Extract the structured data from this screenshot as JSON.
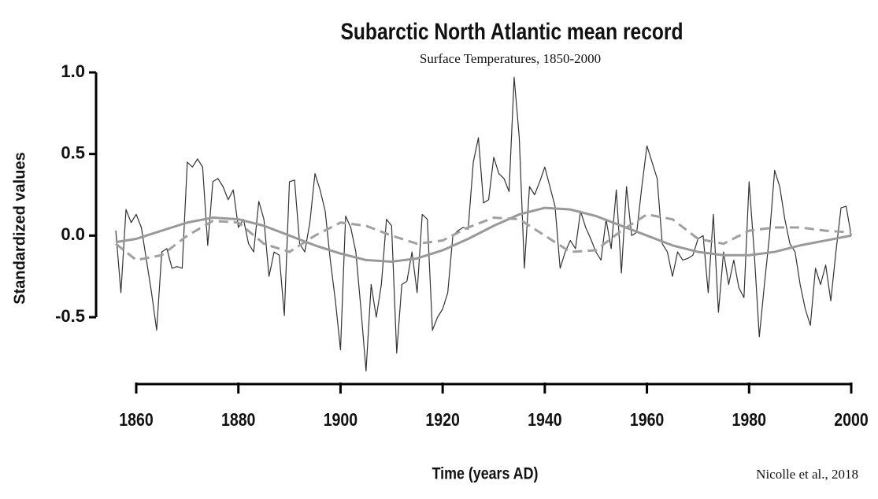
{
  "chart_data": {
    "type": "line",
    "title": "Subarctic North Atlantic mean record",
    "subtitle": "Surface Temperatures, 1850-2000",
    "ylabel": "Standardized values",
    "xlabel": "Time  (years AD)",
    "annotation": "Nicolle et al., 2018",
    "xlim": [
      1860,
      2000
    ],
    "xticks": [
      1860,
      1880,
      1900,
      1920,
      1940,
      1960,
      1980,
      2000
    ],
    "ylim": [
      -0.5,
      1.0
    ],
    "yticks": [
      {
        "value": 1.0,
        "label": "1.0"
      },
      0.5,
      {
        "value": 0.0,
        "label": "0.0"
      },
      -0.5
    ],
    "series": [
      {
        "color": "#333333",
        "linestyle": "solid",
        "width": 1.2,
        "x": [
          1856,
          1857,
          1858,
          1859,
          1860,
          1861,
          1862,
          1863,
          1864,
          1865,
          1866,
          1867,
          1868,
          1869,
          1870,
          1871,
          1872,
          1873,
          1874,
          1875,
          1876,
          1877,
          1878,
          1879,
          1880,
          1881,
          1882,
          1883,
          1884,
          1885,
          1886,
          1887,
          1888,
          1889,
          1890,
          1891,
          1892,
          1893,
          1894,
          1895,
          1896,
          1897,
          1898,
          1899,
          1900,
          1901,
          1902,
          1903,
          1904,
          1905,
          1906,
          1907,
          1908,
          1909,
          1910,
          1911,
          1912,
          1913,
          1914,
          1915,
          1916,
          1917,
          1918,
          1919,
          1920,
          1921,
          1922,
          1923,
          1924,
          1925,
          1926,
          1927,
          1928,
          1929,
          1930,
          1931,
          1932,
          1933,
          1934,
          1935,
          1936,
          1937,
          1938,
          1939,
          1940,
          1941,
          1942,
          1943,
          1944,
          1945,
          1946,
          1947,
          1948,
          1949,
          1950,
          1951,
          1952,
          1953,
          1954,
          1955,
          1956,
          1957,
          1958,
          1959,
          1960,
          1961,
          1962,
          1963,
          1964,
          1965,
          1966,
          1967,
          1968,
          1969,
          1970,
          1971,
          1972,
          1973,
          1974,
          1975,
          1976,
          1977,
          1978,
          1979,
          1980,
          1981,
          1982,
          1983,
          1984,
          1985,
          1986,
          1987,
          1988,
          1989,
          1990,
          1991,
          1992,
          1993,
          1994,
          1995,
          1996,
          1997,
          1998,
          1999,
          2000
        ],
        "values": [
          0.03,
          -0.35,
          0.16,
          0.08,
          0.13,
          0.05,
          -0.15,
          -0.35,
          -0.58,
          -0.1,
          -0.08,
          -0.2,
          -0.19,
          -0.2,
          0.45,
          0.42,
          0.47,
          0.42,
          -0.06,
          0.33,
          0.35,
          0.3,
          0.22,
          0.28,
          0.05,
          0.1,
          -0.05,
          -0.1,
          0.21,
          0.1,
          -0.25,
          -0.1,
          -0.12,
          -0.49,
          0.33,
          0.34,
          -0.05,
          -0.1,
          0.08,
          0.38,
          0.28,
          0.15,
          -0.15,
          -0.4,
          -0.7,
          0.12,
          0.05,
          -0.1,
          -0.45,
          -0.83,
          -0.3,
          -0.5,
          -0.3,
          0.1,
          0.06,
          -0.72,
          -0.3,
          -0.28,
          -0.1,
          -0.35,
          0.13,
          0.1,
          -0.58,
          -0.5,
          -0.45,
          -0.35,
          0.0,
          0.03,
          0.05,
          0.04,
          0.45,
          0.6,
          0.2,
          0.22,
          0.48,
          0.38,
          0.35,
          0.27,
          0.97,
          0.6,
          -0.2,
          0.3,
          0.25,
          0.33,
          0.42,
          0.3,
          0.18,
          -0.2,
          -0.1,
          -0.03,
          -0.08,
          0.15,
          0.05,
          -0.02,
          -0.1,
          -0.15,
          0.1,
          -0.08,
          0.28,
          -0.23,
          0.3,
          0.0,
          0.02,
          0.3,
          0.55,
          0.45,
          0.35,
          -0.05,
          -0.1,
          -0.25,
          -0.1,
          -0.15,
          -0.14,
          -0.12,
          -0.02,
          0.0,
          -0.35,
          0.13,
          -0.47,
          -0.1,
          -0.3,
          -0.15,
          -0.32,
          -0.38,
          0.33,
          -0.1,
          -0.62,
          -0.3,
          0.0,
          0.4,
          0.3,
          0.1,
          -0.05,
          -0.1,
          -0.3,
          -0.45,
          -0.55,
          -0.2,
          -0.3,
          -0.18,
          -0.4,
          -0.1,
          0.17,
          0.18,
          0.0
        ]
      },
      {
        "color": "#999999",
        "linestyle": "solid",
        "width": 3,
        "x": [
          1856,
          1860,
          1865,
          1870,
          1875,
          1880,
          1885,
          1890,
          1895,
          1900,
          1905,
          1910,
          1915,
          1920,
          1925,
          1930,
          1935,
          1940,
          1945,
          1950,
          1955,
          1960,
          1965,
          1970,
          1975,
          1980,
          1985,
          1990,
          1995,
          2000
        ],
        "values": [
          -0.04,
          -0.02,
          0.03,
          0.08,
          0.11,
          0.1,
          0.06,
          0.0,
          -0.06,
          -0.11,
          -0.15,
          -0.16,
          -0.14,
          -0.09,
          -0.02,
          0.06,
          0.13,
          0.17,
          0.16,
          0.12,
          0.06,
          0.0,
          -0.06,
          -0.1,
          -0.12,
          -0.12,
          -0.1,
          -0.06,
          -0.03,
          0.0
        ]
      },
      {
        "color": "#a0a0a0",
        "linestyle": "dashed",
        "width": 3,
        "x": [
          1856,
          1860,
          1865,
          1870,
          1875,
          1880,
          1885,
          1890,
          1895,
          1900,
          1905,
          1910,
          1915,
          1920,
          1925,
          1930,
          1935,
          1940,
          1945,
          1950,
          1955,
          1960,
          1965,
          1970,
          1975,
          1980,
          1985,
          1990,
          1995,
          2000
        ],
        "values": [
          -0.05,
          -0.15,
          -0.12,
          0.0,
          0.09,
          0.08,
          -0.05,
          -0.1,
          0.0,
          0.08,
          0.06,
          0.0,
          -0.05,
          -0.03,
          0.05,
          0.11,
          0.1,
          0.0,
          -0.1,
          -0.09,
          0.03,
          0.13,
          0.1,
          -0.02,
          -0.05,
          0.03,
          0.05,
          0.05,
          0.03,
          0.02
        ]
      }
    ]
  }
}
